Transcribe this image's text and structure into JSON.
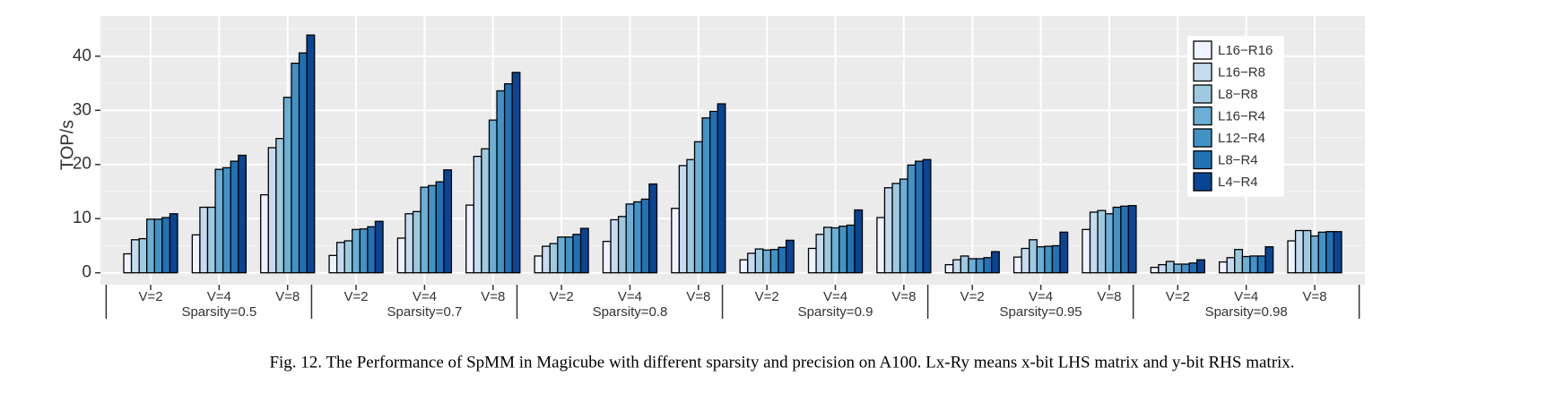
{
  "chart_data": {
    "type": "bar",
    "ylabel": "TOP/s",
    "caption": "Fig. 12.  The Performance of SpMM in Magicube with different sparsity and precision on A100. Lx-Ry means x-bit LHS matrix and y-bit RHS matrix.",
    "categories": [
      "V=2",
      "V=4",
      "V=8",
      "V=2",
      "V=4",
      "V=8",
      "V=2",
      "V=4",
      "V=8",
      "V=2",
      "V=4",
      "V=8",
      "V=2",
      "V=4",
      "V=8",
      "V=2",
      "V=4",
      "V=8"
    ],
    "groups": [
      "Sparsity=0.5",
      "Sparsity=0.7",
      "Sparsity=0.8",
      "Sparsity=0.9",
      "Sparsity=0.95",
      "Sparsity=0.98"
    ],
    "series": [
      {
        "name": "L16−R16",
        "color": "#eff3ff",
        "values": [
          3.5,
          7.0,
          14.4,
          3.2,
          6.4,
          12.5,
          3.1,
          5.8,
          11.9,
          2.4,
          4.5,
          10.2,
          1.5,
          2.9,
          8.0,
          1.0,
          2.0,
          5.9
        ]
      },
      {
        "name": "L16−R8",
        "color": "#c6dbef",
        "values": [
          6.1,
          12.1,
          23.1,
          5.6,
          10.9,
          21.5,
          4.9,
          9.8,
          19.8,
          3.6,
          7.1,
          15.7,
          2.4,
          4.5,
          11.2,
          1.5,
          2.8,
          7.8
        ]
      },
      {
        "name": "L8−R8",
        "color": "#9ecae1",
        "values": [
          6.3,
          12.1,
          24.8,
          5.9,
          11.3,
          22.9,
          5.4,
          10.4,
          20.9,
          4.4,
          8.4,
          16.5,
          3.1,
          6.1,
          11.5,
          2.1,
          4.3,
          7.8
        ]
      },
      {
        "name": "L16−R4",
        "color": "#6baed6",
        "values": [
          9.9,
          19.1,
          32.4,
          8.0,
          15.8,
          28.2,
          6.6,
          12.7,
          24.2,
          4.2,
          8.3,
          17.3,
          2.6,
          4.8,
          10.9,
          1.6,
          3.0,
          6.8
        ]
      },
      {
        "name": "L12−R4",
        "color": "#4292c6",
        "values": [
          9.9,
          19.4,
          38.7,
          8.1,
          16.1,
          33.6,
          6.6,
          13.1,
          28.6,
          4.3,
          8.6,
          19.9,
          2.6,
          4.9,
          12.1,
          1.6,
          3.1,
          7.5
        ]
      },
      {
        "name": "L8−R4",
        "color": "#2171b5",
        "values": [
          10.2,
          20.6,
          40.6,
          8.5,
          16.8,
          34.9,
          7.1,
          13.6,
          29.8,
          4.7,
          8.8,
          20.6,
          2.8,
          5.0,
          12.3,
          1.8,
          3.1,
          7.6
        ]
      },
      {
        "name": "L4−R4",
        "color": "#084594",
        "values": [
          10.9,
          21.7,
          43.9,
          9.5,
          19.0,
          37.0,
          8.2,
          16.4,
          31.2,
          6.0,
          11.6,
          20.9,
          3.9,
          7.5,
          12.4,
          2.4,
          4.8,
          7.6
        ]
      }
    ],
    "ylim": [
      -2.2,
      47.4
    ],
    "yticks": [
      0,
      10,
      20,
      30,
      40
    ],
    "minor_yticks": [
      5,
      15,
      25,
      35,
      45
    ],
    "grid": true,
    "legend": "top-right"
  }
}
